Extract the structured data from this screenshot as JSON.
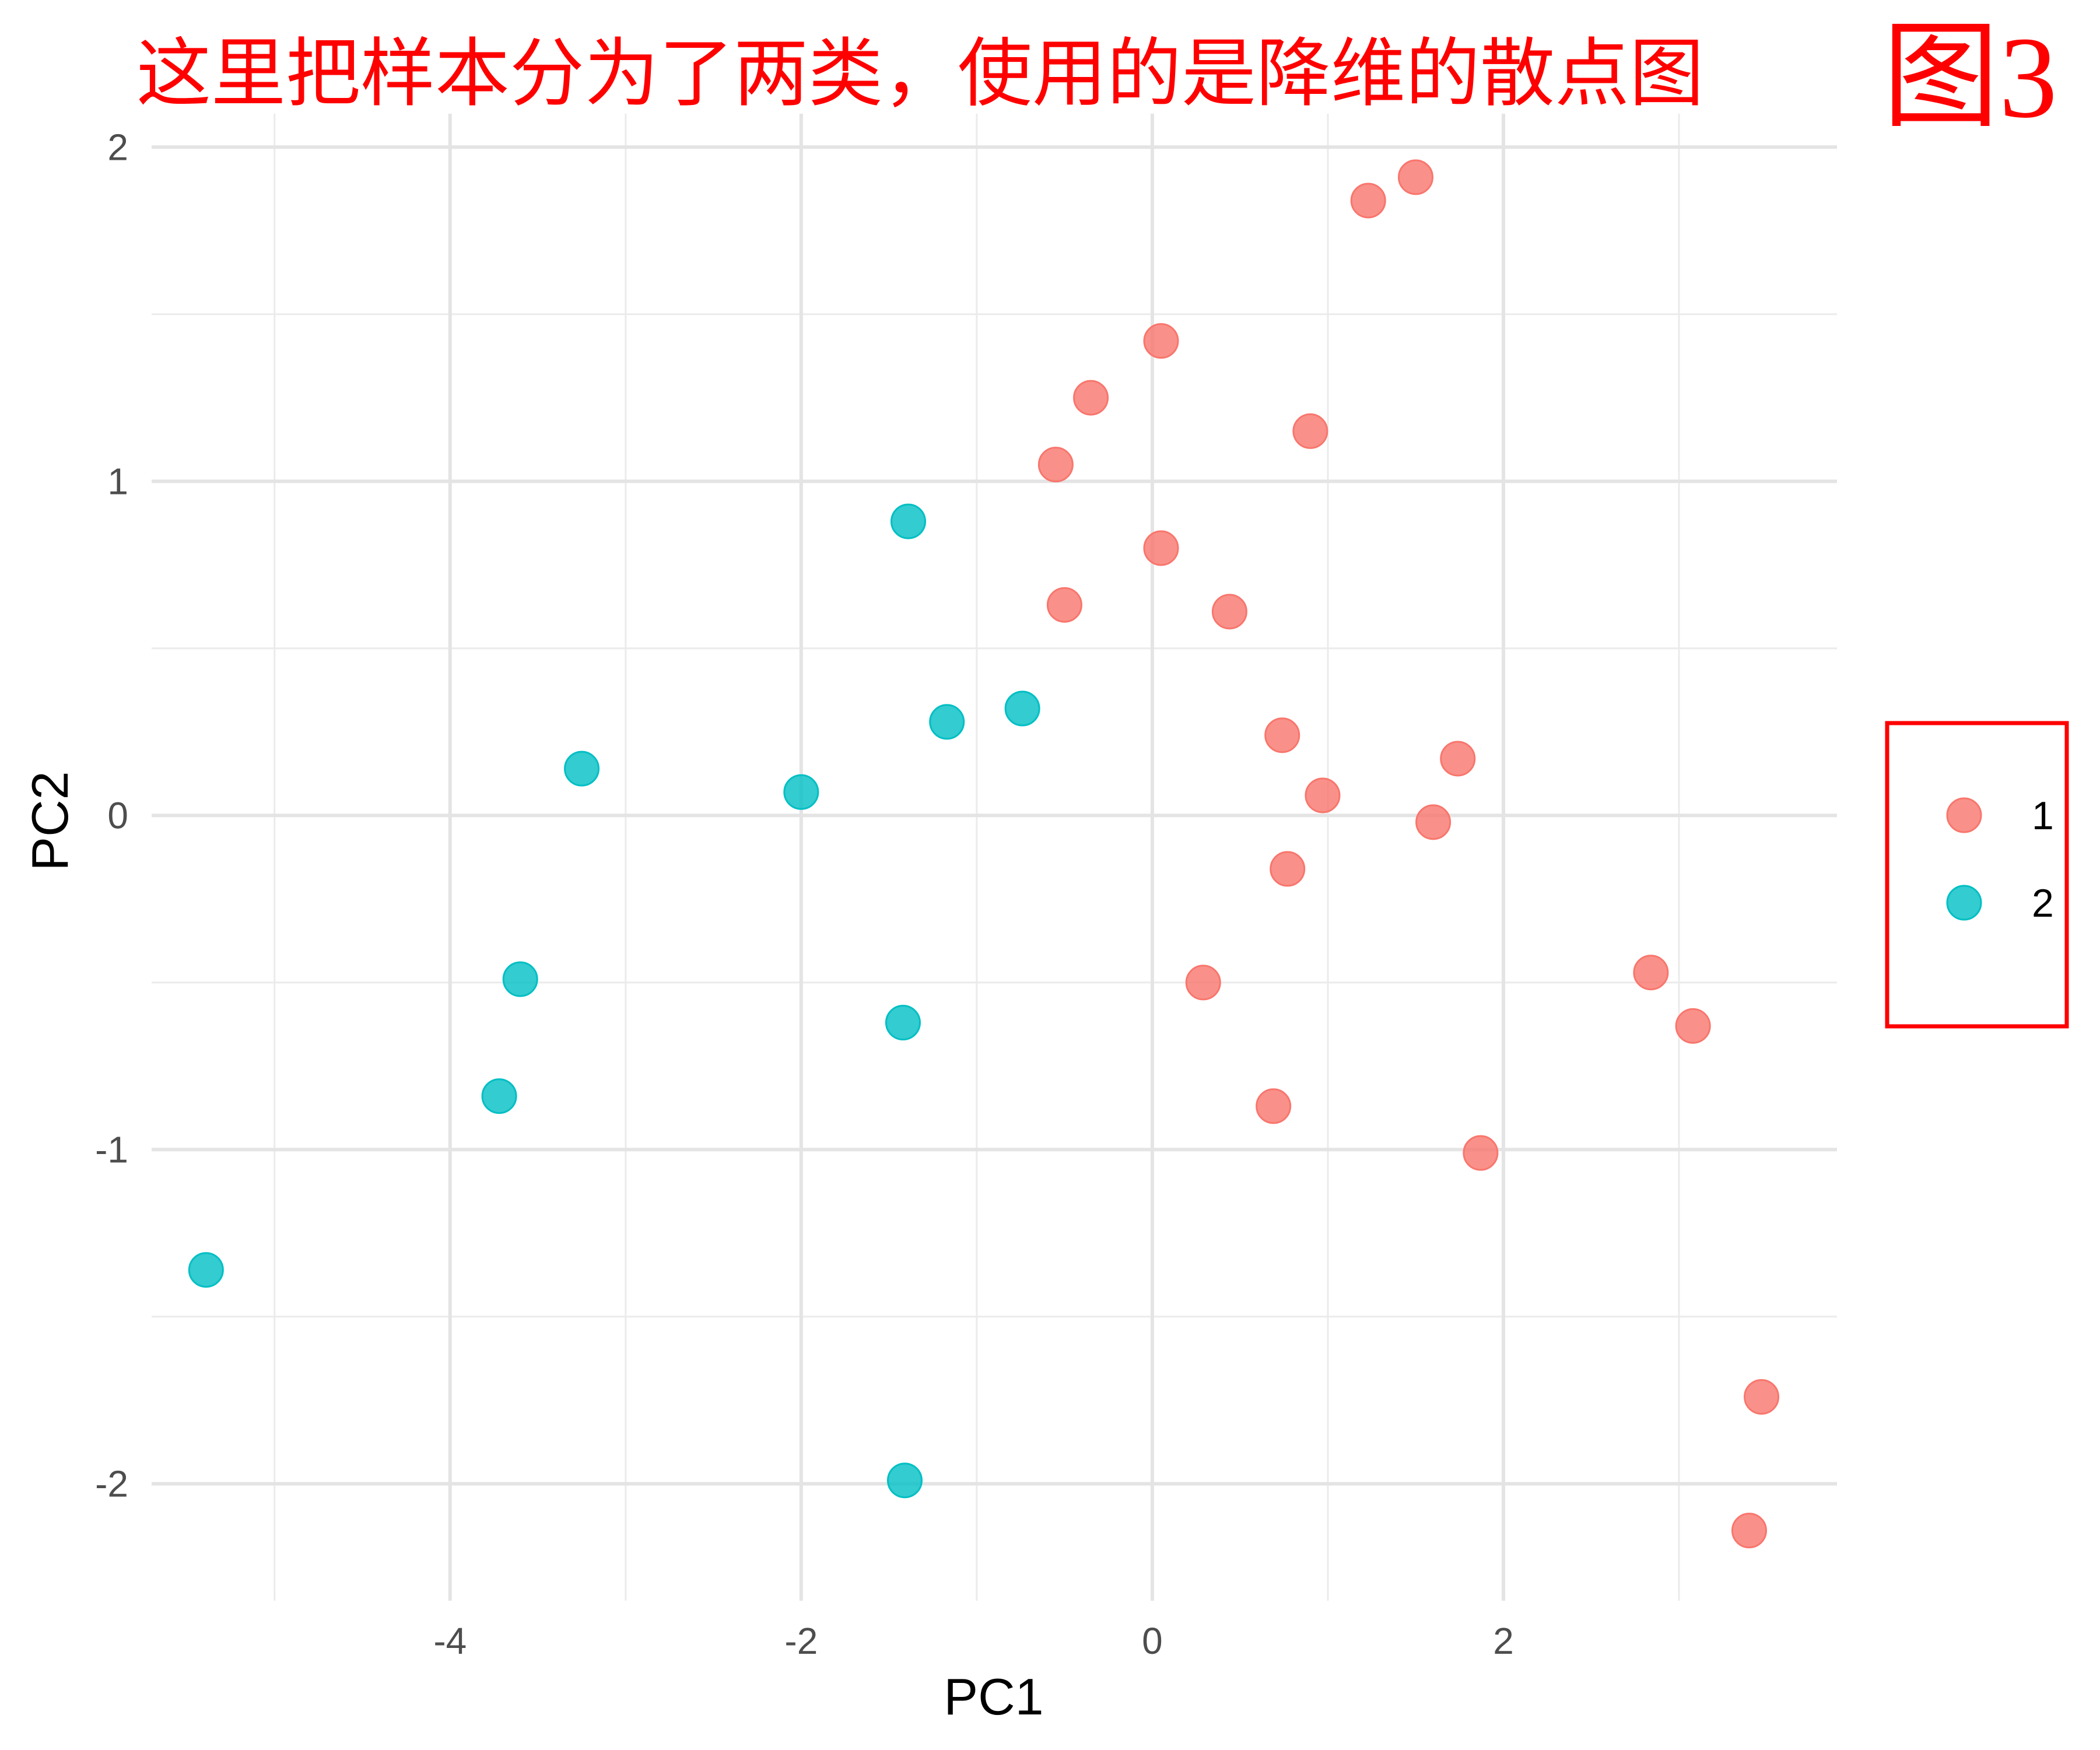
{
  "annotation": {
    "text": "这里把样本分为了两类，使用的是降维的散点图",
    "figure_label": "图3",
    "color": "#ff0000",
    "legend_box_color": "#ff0000"
  },
  "chart_data": {
    "type": "scatter",
    "xlabel": "PC1",
    "ylabel": "PC2",
    "xlim": [
      -5.7,
      3.9
    ],
    "ylim": [
      -2.35,
      2.1
    ],
    "x_ticks": [
      -4,
      -2,
      0,
      2
    ],
    "y_ticks": [
      -2,
      -1,
      0,
      1,
      2
    ],
    "grid": true,
    "legend_position": "right",
    "series": [
      {
        "name": "1",
        "color": "#f8766d",
        "points": [
          {
            "x": 1.5,
            "y": 1.91
          },
          {
            "x": 1.23,
            "y": 1.84
          },
          {
            "x": 0.05,
            "y": 1.42
          },
          {
            "x": -0.35,
            "y": 1.25
          },
          {
            "x": 0.9,
            "y": 1.15
          },
          {
            "x": -0.55,
            "y": 1.05
          },
          {
            "x": 0.05,
            "y": 0.8
          },
          {
            "x": -0.5,
            "y": 0.63
          },
          {
            "x": 0.44,
            "y": 0.61
          },
          {
            "x": 0.74,
            "y": 0.24
          },
          {
            "x": 1.74,
            "y": 0.17
          },
          {
            "x": 0.97,
            "y": 0.06
          },
          {
            "x": 1.6,
            "y": -0.02
          },
          {
            "x": 0.77,
            "y": -0.16
          },
          {
            "x": 0.29,
            "y": -0.5
          },
          {
            "x": 2.84,
            "y": -0.47
          },
          {
            "x": 3.08,
            "y": -0.63
          },
          {
            "x": 0.69,
            "y": -0.87
          },
          {
            "x": 1.87,
            "y": -1.01
          },
          {
            "x": 3.47,
            "y": -1.74
          },
          {
            "x": 3.4,
            "y": -2.14
          }
        ]
      },
      {
        "name": "2",
        "color": "#00bfc4",
        "points": [
          {
            "x": -1.39,
            "y": 0.88
          },
          {
            "x": -0.74,
            "y": 0.32
          },
          {
            "x": -1.17,
            "y": 0.28
          },
          {
            "x": -3.25,
            "y": 0.14
          },
          {
            "x": -2.0,
            "y": 0.07
          },
          {
            "x": -3.6,
            "y": -0.49
          },
          {
            "x": -1.42,
            "y": -0.62
          },
          {
            "x": -3.72,
            "y": -0.84
          },
          {
            "x": -5.39,
            "y": -1.36
          },
          {
            "x": -1.41,
            "y": -1.99
          }
        ]
      }
    ]
  }
}
